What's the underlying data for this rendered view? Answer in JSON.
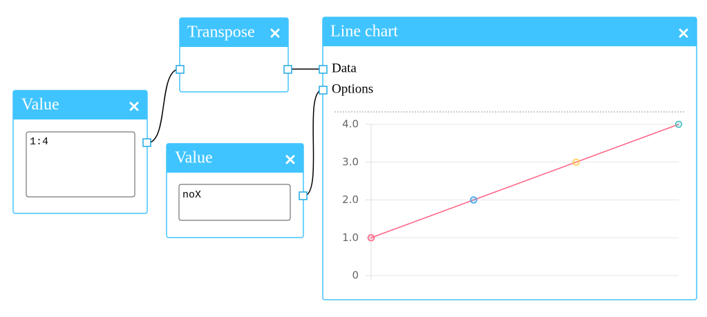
{
  "nodes": [
    {
      "title": "Value",
      "input": "1:4"
    },
    {
      "title": "Transpose"
    },
    {
      "title": "Value",
      "input": "noX"
    },
    {
      "title": "Line chart",
      "ports": [
        "Data",
        "Options"
      ]
    }
  ],
  "chart_data": {
    "type": "line",
    "categories": [
      null,
      null,
      null,
      null
    ],
    "series": [
      {
        "color": "#ff6384",
        "values": [
          1,
          2,
          3,
          4
        ],
        "point_colors": [
          "#ff6384",
          "#36a2eb",
          "#ffce56",
          "#4bc0c0"
        ]
      }
    ],
    "ylim": [
      0,
      4
    ],
    "yticks": [
      0,
      {
        "value": 1,
        "label": "1.0"
      },
      {
        "value": 2,
        "label": "2.0"
      },
      {
        "value": 3,
        "label": "3.0"
      },
      {
        "value": 4,
        "label": "4.0"
      }
    ],
    "grid": true
  }
}
